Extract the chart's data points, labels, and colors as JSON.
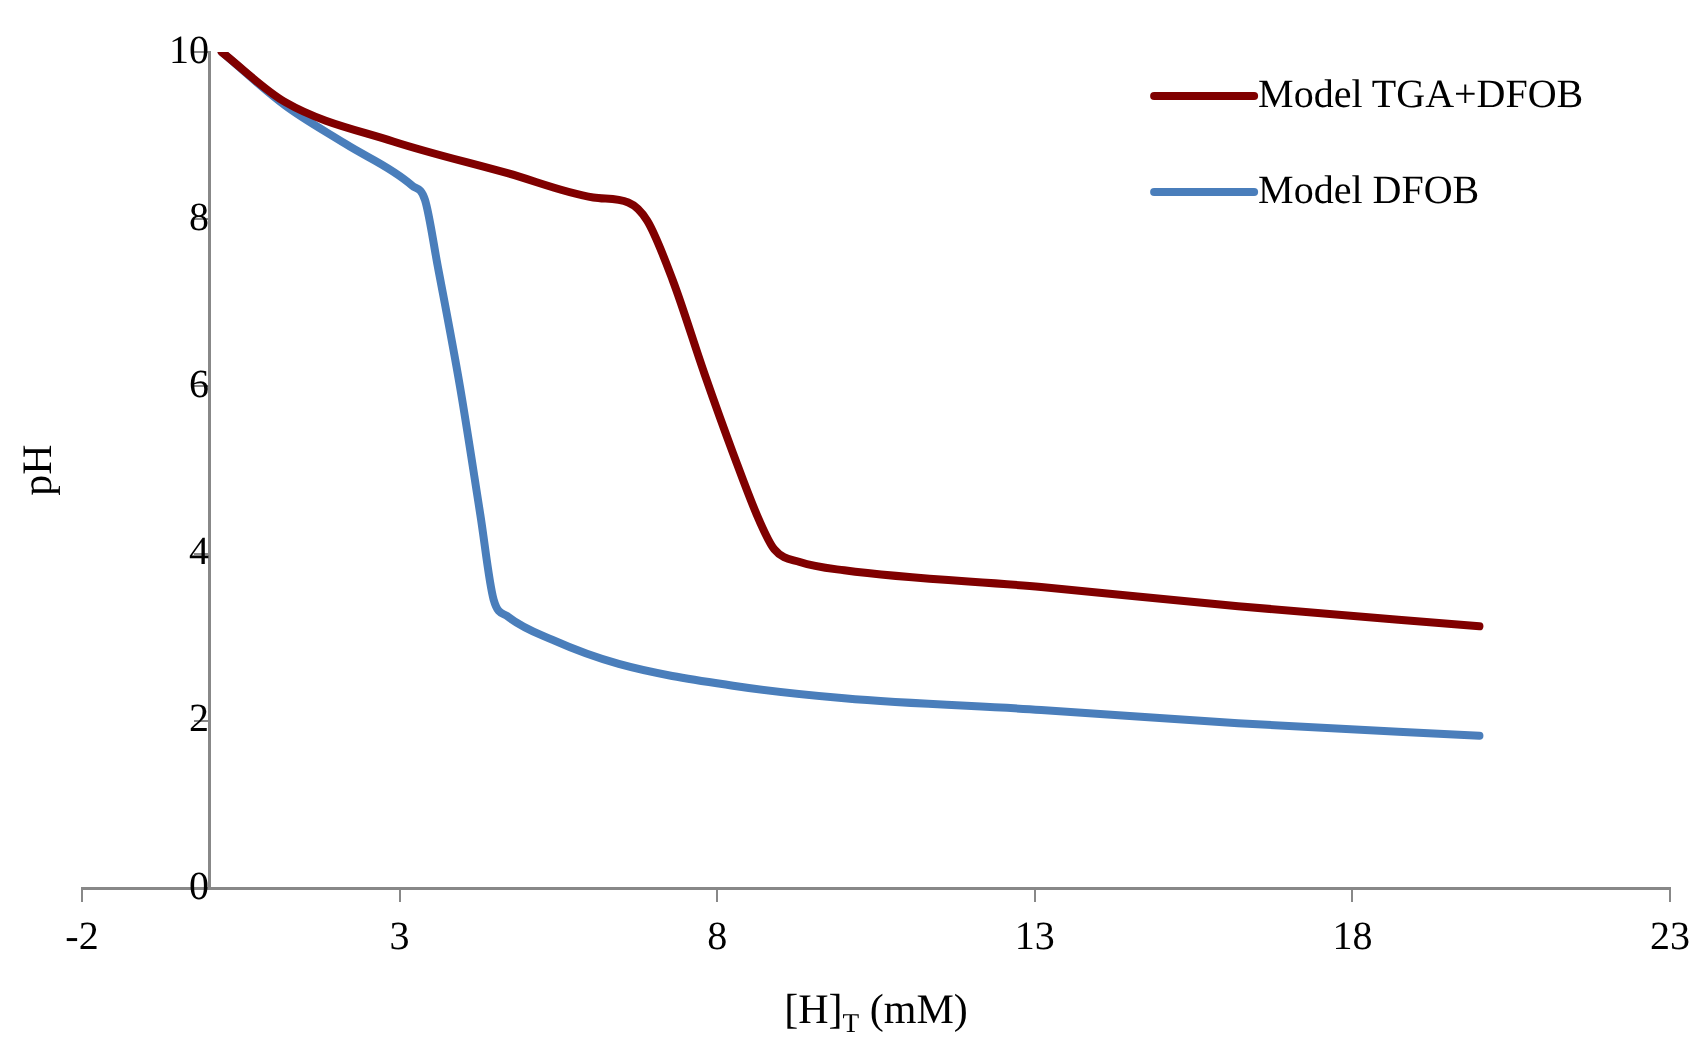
{
  "chart_data": {
    "type": "line",
    "xlabel": "[H]$_{T}$ (mM)",
    "ylabel": "pH",
    "xlim": [
      -2,
      23
    ],
    "xticks": [
      -2,
      3,
      8,
      13,
      18,
      23
    ],
    "ylim": [
      0,
      10
    ],
    "yticks": [
      0,
      2,
      4,
      6,
      8,
      10
    ],
    "grid": false,
    "legend": "top right",
    "marker": "none",
    "line_style": "solid",
    "series": [
      {
        "name": "Model TGA+DFOB",
        "color": "#800000",
        "x": [
          0.2,
          1.2,
          2.9,
          4.7,
          6.05,
          6.6,
          6.9,
          7.3,
          7.8,
          8.25,
          8.66,
          8.9,
          9.3,
          10,
          13.1,
          16.2,
          20
        ],
        "values": [
          10,
          9.4,
          8.93,
          8.55,
          8.26,
          8.2,
          7.98,
          7.27,
          6.15,
          5.2,
          4.4,
          4.05,
          3.9,
          3.8,
          3.6,
          3.37,
          3.13
        ]
      },
      {
        "name": "Model DFOB",
        "color": "#4a7ebb",
        "x": [
          0.2,
          1.2,
          2.15,
          3.2,
          3.4,
          3.6,
          3.95,
          4.27,
          4.48,
          4.7,
          5.4,
          6.45,
          8.25,
          10,
          13.1,
          16.2,
          20
        ],
        "values": [
          10,
          9.36,
          8.9,
          8.4,
          8.23,
          7.44,
          6,
          4.47,
          3.45,
          3.25,
          2.97,
          2.68,
          2.42,
          2.27,
          2.13,
          1.97,
          1.82
        ]
      }
    ]
  }
}
